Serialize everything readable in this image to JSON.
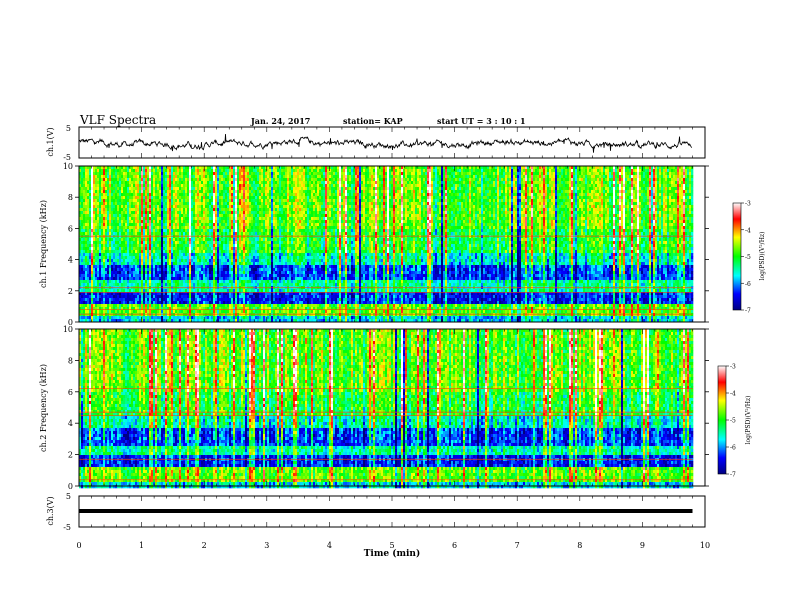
{
  "header": {
    "title": "VLF Spectra",
    "date": "Jan. 24, 2017",
    "station": "station= KAP",
    "start": "start  UT =   3 : 10 : 1"
  },
  "chart_data": [
    {
      "type": "line",
      "panel": "ch1-waveform",
      "ylabel": "ch.1(V)",
      "ylim": [
        -5,
        5
      ],
      "yticks": [
        "5",
        "-5"
      ],
      "xlim": [
        0,
        10
      ],
      "description_values": "noisy waveform centred around 0 V, roughly between -3 and +2 V, spanning 0 to 9.8 min",
      "x_end": 9.8,
      "mean": 0
    },
    {
      "type": "heatmap",
      "panel": "ch1-spectrogram",
      "ylabel": "ch.1 Frequency (kHz)",
      "ylim": [
        0,
        10
      ],
      "yticks": [
        "0",
        "2",
        "4",
        "6",
        "8",
        "10"
      ],
      "xlim": [
        0,
        10
      ],
      "x_end": 9.8,
      "hlines_khz": [
        5.5,
        2.2,
        1.9,
        0.8,
        0.5
      ],
      "colorbar": {
        "label": "log(PSD)(V²/Hz)",
        "range": [
          -7,
          -3
        ],
        "ticks": [
          "-3",
          "-4",
          "-5",
          "-6",
          "-7"
        ]
      }
    },
    {
      "type": "heatmap",
      "panel": "ch2-spectrogram",
      "ylabel": "ch.2 Frequency (kHz)",
      "ylim": [
        0,
        10
      ],
      "yticks": [
        "0",
        "2",
        "4",
        "6",
        "8",
        "10"
      ],
      "xlim": [
        0,
        10
      ],
      "x_end": 9.8,
      "hlines_khz": [
        6.2,
        4.7,
        4.5,
        1.7,
        0.4
      ],
      "colorbar": {
        "label": "log(PSD)(V²/Hz)",
        "range": [
          -7,
          -3
        ],
        "ticks": [
          "-3",
          "-4",
          "-5",
          "-6",
          "-7"
        ]
      }
    },
    {
      "type": "line",
      "panel": "ch3-waveform",
      "ylabel": "ch.3(V)",
      "ylim": [
        -5,
        5
      ],
      "yticks": [
        "5",
        "-5"
      ],
      "xlim": [
        0,
        10
      ],
      "x_end": 9.8,
      "constant_value": 0
    }
  ],
  "xaxis": {
    "label": "Time  (min)",
    "ticks": [
      "0",
      "1",
      "2",
      "3",
      "4",
      "5",
      "6",
      "7",
      "8",
      "9",
      "10"
    ]
  },
  "colors": {
    "colormap": [
      "#00008b",
      "#0000ff",
      "#00bfff",
      "#00ffff",
      "#00ff66",
      "#99ff00",
      "#ffff00",
      "#ffa500",
      "#ff0000",
      "#ffffff"
    ]
  }
}
